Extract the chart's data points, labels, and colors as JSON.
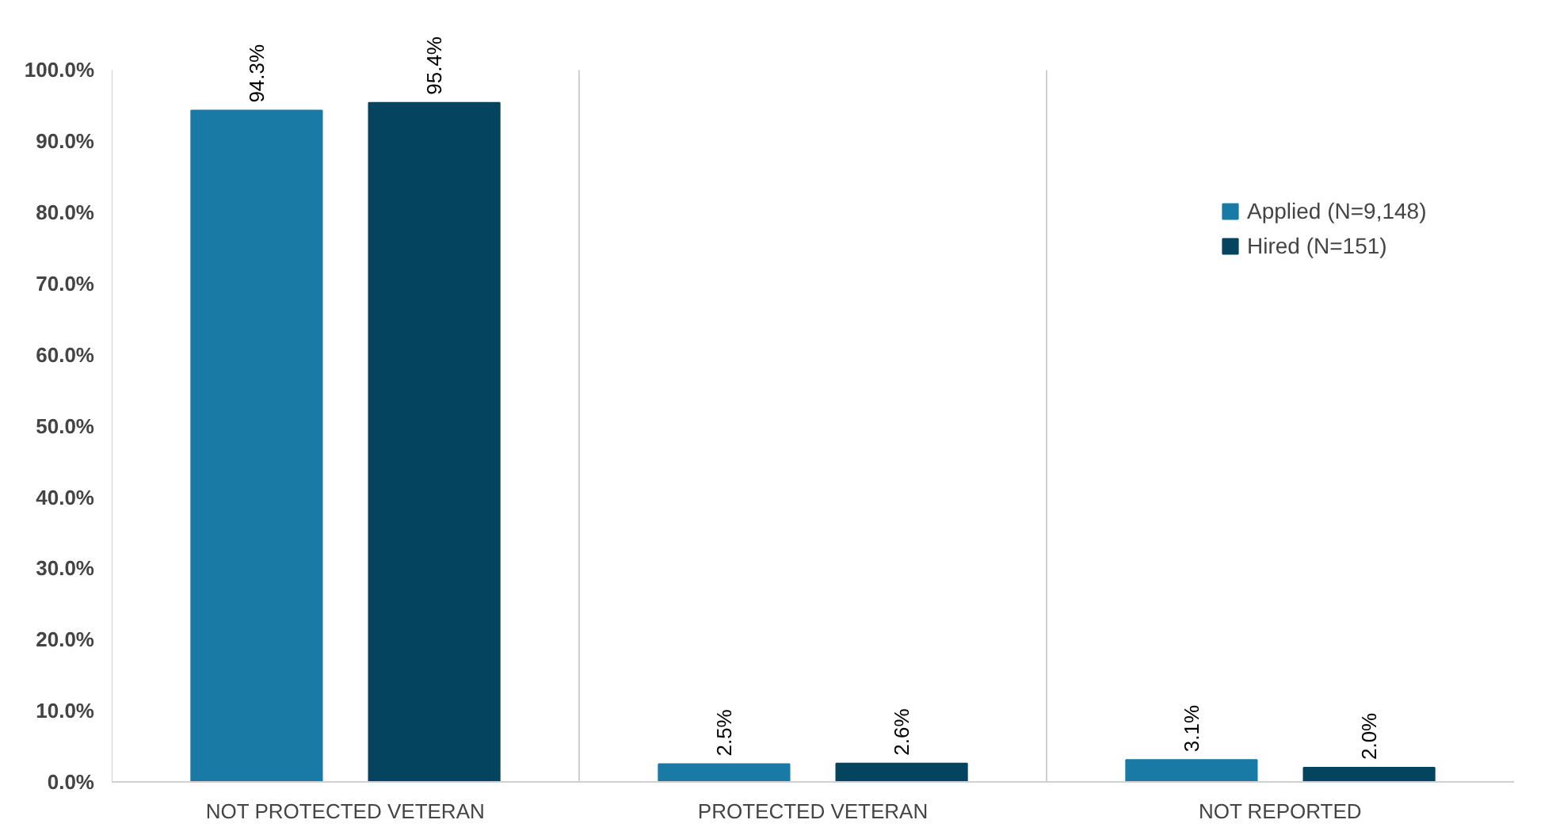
{
  "chart_data": {
    "type": "bar",
    "categories": [
      "NOT PROTECTED VETERAN",
      "PROTECTED VETERAN",
      "NOT REPORTED"
    ],
    "series": [
      {
        "name": "Applied (N=9,148)",
        "color": "#1a7aa6",
        "values": [
          94.3,
          2.5,
          3.1
        ],
        "value_labels": [
          "94.3%",
          "2.5%",
          "3.1%"
        ]
      },
      {
        "name": "Hired (N=151)",
        "color": "#05445f",
        "values": [
          95.4,
          2.6,
          2.0
        ],
        "value_labels": [
          "95.4%",
          "2.6%",
          "2.0%"
        ]
      }
    ],
    "ylim": [
      0,
      100
    ],
    "yticks": [
      {
        "value": 0,
        "label": "0.0%"
      },
      {
        "value": 10,
        "label": "10.0%"
      },
      {
        "value": 20,
        "label": "20.0%"
      },
      {
        "value": 30,
        "label": "30.0%"
      },
      {
        "value": 40,
        "label": "40.0%"
      },
      {
        "value": 50,
        "label": "50.0%"
      },
      {
        "value": 60,
        "label": "60.0%"
      },
      {
        "value": 70,
        "label": "70.0%"
      },
      {
        "value": 80,
        "label": "80.0%"
      },
      {
        "value": 90,
        "label": "90.0%"
      },
      {
        "value": 100,
        "label": "100.0%"
      }
    ],
    "grid": "x",
    "legend": "right"
  }
}
